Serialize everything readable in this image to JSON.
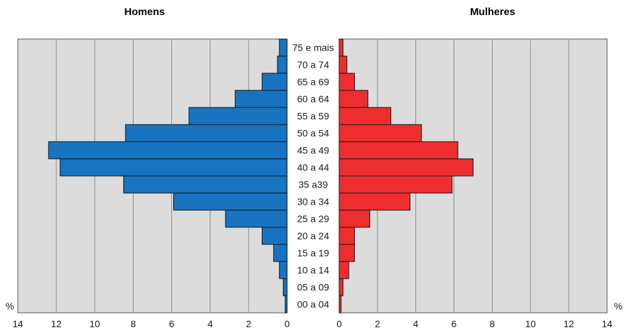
{
  "chart_data": {
    "type": "bar",
    "orientation": "horizontal",
    "categories": [
      "00 a 04",
      "05 a 09",
      "10 a 14",
      "15 a 19",
      "20 a 24",
      "25 a 29",
      "30 a 34",
      "35 a39",
      "40 a 44",
      "45 a 49",
      "50 a 54",
      "55 a 59",
      "60 a 64",
      "65 a 69",
      "70 a 74",
      "75 e mais"
    ],
    "series": [
      {
        "name": "Homens",
        "color": "#1874c0",
        "values": [
          0.1,
          0.2,
          0.4,
          0.7,
          1.3,
          3.2,
          5.9,
          8.5,
          11.8,
          12.4,
          8.4,
          5.1,
          2.7,
          1.3,
          0.5,
          0.4
        ]
      },
      {
        "name": "Mulheres",
        "color": "#ee2e2e",
        "values": [
          0.1,
          0.2,
          0.5,
          0.8,
          0.8,
          1.6,
          3.7,
          5.9,
          7.0,
          6.2,
          4.3,
          2.7,
          1.5,
          0.8,
          0.4,
          0.2
        ]
      }
    ],
    "left_title": "Homens",
    "right_title": "Mulheres",
    "unit_label": "%",
    "xlim": [
      0,
      14
    ],
    "ticks": [
      "0",
      "2",
      "4",
      "6",
      "8",
      "10",
      "12",
      "14"
    ],
    "grid": true,
    "plot_background": "#dcdcdc"
  }
}
